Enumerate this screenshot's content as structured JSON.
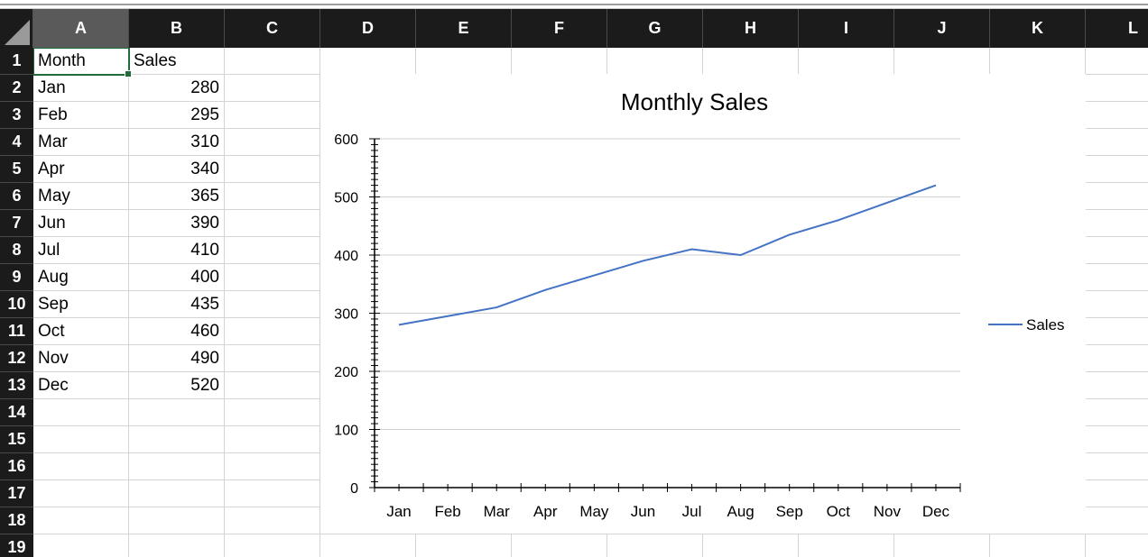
{
  "columns": [
    "A",
    "B",
    "C",
    "D",
    "E",
    "F",
    "G",
    "H",
    "I",
    "J",
    "K",
    "L"
  ],
  "rows": [
    "1",
    "2",
    "3",
    "4",
    "5",
    "6",
    "7",
    "8",
    "9",
    "10",
    "11",
    "12",
    "13",
    "14",
    "15",
    "16",
    "17",
    "18",
    "19"
  ],
  "sheet": {
    "header": {
      "month": "Month",
      "sales": "Sales"
    },
    "data": [
      {
        "month": "Jan",
        "sales": "280"
      },
      {
        "month": "Feb",
        "sales": "295"
      },
      {
        "month": "Mar",
        "sales": "310"
      },
      {
        "month": "Apr",
        "sales": "340"
      },
      {
        "month": "May",
        "sales": "365"
      },
      {
        "month": "Jun",
        "sales": "390"
      },
      {
        "month": "Jul",
        "sales": "410"
      },
      {
        "month": "Aug",
        "sales": "400"
      },
      {
        "month": "Sep",
        "sales": "435"
      },
      {
        "month": "Oct",
        "sales": "460"
      },
      {
        "month": "Nov",
        "sales": "490"
      },
      {
        "month": "Dec",
        "sales": "520"
      }
    ],
    "selected_cell": "A1"
  },
  "chart_data": {
    "type": "line",
    "title": "Monthly Sales",
    "categories": [
      "Jan",
      "Feb",
      "Mar",
      "Apr",
      "May",
      "Jun",
      "Jul",
      "Aug",
      "Sep",
      "Oct",
      "Nov",
      "Dec"
    ],
    "series": [
      {
        "name": "Sales",
        "values": [
          280,
          295,
          310,
          340,
          365,
          390,
          410,
          400,
          435,
          460,
          490,
          520
        ],
        "color": "#4472c4"
      }
    ],
    "ylim": [
      0,
      600
    ],
    "yticks": [
      "0",
      "100",
      "200",
      "300",
      "400",
      "500",
      "600"
    ],
    "grid": true,
    "legend": "right"
  }
}
